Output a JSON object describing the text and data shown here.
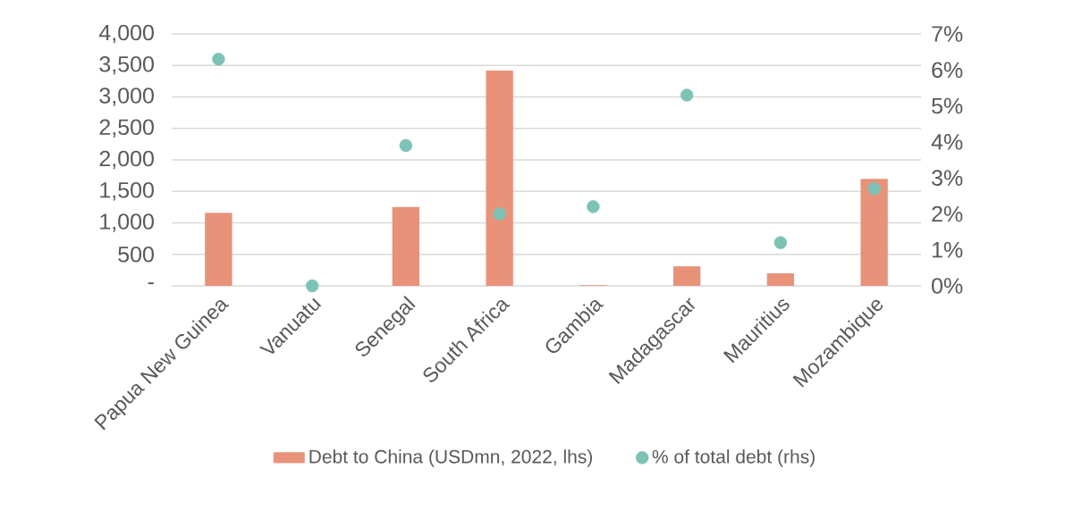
{
  "chart_data": {
    "type": "bar",
    "categories": [
      "Papua New Guinea",
      "Vanuatu",
      "Senegal",
      "South Africa",
      "Gambia",
      "Madagascar",
      "Mauritius",
      "Mozambique"
    ],
    "series": [
      {
        "name": "Debt to China (USDmn, 2022, lhs)",
        "color": "#e8927a",
        "values": [
          1160,
          0,
          1250,
          3420,
          10,
          310,
          200,
          1700
        ]
      },
      {
        "name": "% of total debt (rhs)",
        "type": "scatter",
        "axis": "y2",
        "color": "#7cc3b5",
        "values": [
          6.3,
          0,
          3.9,
          2.0,
          2.2,
          5.3,
          1.2,
          2.7
        ]
      }
    ],
    "ylim": [
      0,
      4000
    ],
    "yticks": [
      {
        "value": 0,
        "label": "-"
      },
      {
        "value": 500,
        "label": "500"
      },
      {
        "value": 1000,
        "label": "1,000"
      },
      {
        "value": 1500,
        "label": "1,500"
      },
      {
        "value": 2000,
        "label": "2,000"
      },
      {
        "value": 2500,
        "label": "2,500"
      },
      {
        "value": 3000,
        "label": "3,000"
      },
      {
        "value": 3500,
        "label": "3,500"
      },
      {
        "value": 4000,
        "label": "4,000"
      }
    ],
    "y2lim": [
      0,
      7
    ],
    "y2ticks": [
      {
        "value": 0,
        "label": "0%"
      },
      {
        "value": 1,
        "label": "1%"
      },
      {
        "value": 2,
        "label": "2%"
      },
      {
        "value": 3,
        "label": "3%"
      },
      {
        "value": 4,
        "label": "4%"
      },
      {
        "value": 5,
        "label": "5%"
      },
      {
        "value": 6,
        "label": "6%"
      },
      {
        "value": 7,
        "label": "7%"
      }
    ],
    "grid": "y",
    "legend": "bottom",
    "marker": "circle"
  }
}
